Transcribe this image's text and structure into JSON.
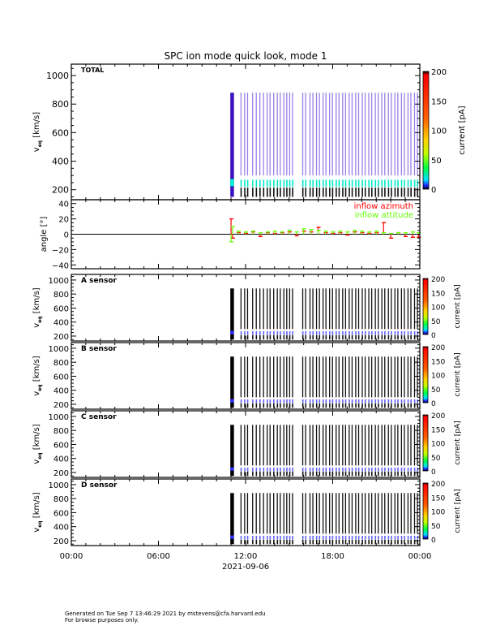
{
  "chart_data": {
    "type": "heatmap",
    "title": "SPC ion mode quick look, mode 1",
    "xlabel": "2021-09-06",
    "x_range_hours": [
      0,
      24
    ],
    "x_ticks": [
      {
        "h": 0,
        "label": "00:00"
      },
      {
        "h": 6,
        "label": "06:00"
      },
      {
        "h": 12,
        "label": "12:00"
      },
      {
        "h": 18,
        "label": "18:00"
      },
      {
        "h": 24,
        "label": "00:00"
      }
    ],
    "colors": {
      "azimuth": "#ff0000",
      "attitude": "#66ff00",
      "axis": "#000000"
    },
    "velocity_axis": {
      "label_main": "v",
      "label_sub": "eq",
      "label_unit": "[km/s]",
      "range": [
        130,
        1080
      ],
      "ticks": [
        200,
        400,
        600,
        800,
        1000
      ]
    },
    "colorbar": {
      "label": "current [pA]",
      "range": [
        0,
        200
      ],
      "ticks": [
        0,
        50,
        100,
        150,
        200
      ]
    },
    "spectrogram_panels": [
      {
        "name": "TOTAL",
        "style": "total"
      },
      {
        "name": "A sensor",
        "style": "sensor"
      },
      {
        "name": "B sensor",
        "style": "sensor"
      },
      {
        "name": "C sensor",
        "style": "sensor"
      },
      {
        "name": "D sensor",
        "style": "sensor"
      }
    ],
    "data_block_hours": [
      10.95,
      11.2
    ],
    "stripe_hours": [
      11.65,
      11.9,
      12.1,
      12.45,
      12.7,
      12.95,
      13.2,
      13.45,
      13.65,
      13.9,
      14.15,
      14.35,
      14.6,
      14.8,
      15.0,
      15.2,
      15.9,
      16.1,
      16.4,
      16.6,
      16.85,
      17.05,
      17.3,
      17.5,
      17.75,
      17.95,
      18.2,
      18.4,
      18.65,
      18.85,
      19.1,
      19.3,
      19.55,
      19.75,
      20.0,
      20.2,
      20.45,
      20.65,
      20.9,
      21.1,
      21.35,
      21.55,
      21.8,
      22.0,
      22.25,
      22.45,
      22.7,
      22.9,
      23.15,
      23.35,
      23.6,
      23.8
    ],
    "peak_velocity_kms": 250,
    "angle_panel": {
      "ylabel": "angle [°]",
      "range": [
        -45,
        45
      ],
      "ticks": [
        -40,
        -20,
        0,
        20,
        40
      ],
      "legend": [
        "inflow azimuth",
        "inflow attitude"
      ],
      "series": [
        {
          "name": "inflow azimuth",
          "x": [
            11.0,
            11.1,
            11.5,
            12.0,
            12.5,
            13.0,
            13.5,
            14.0,
            14.5,
            15.0,
            15.5,
            16.0,
            16.5,
            17.0,
            17.5,
            18.0,
            18.5,
            19.0,
            19.5,
            20.0,
            20.5,
            21.0,
            21.5,
            22.0,
            22.5,
            23.0,
            23.5,
            23.9
          ],
          "y": [
            20,
            -5,
            2,
            1,
            3,
            -3,
            2,
            1,
            2,
            3,
            -2,
            4,
            3,
            9,
            2,
            1,
            2,
            -1,
            3,
            2,
            1,
            2,
            15,
            -5,
            2,
            -3,
            -4,
            -4
          ]
        },
        {
          "name": "inflow attitude",
          "x": [
            11.0,
            11.1,
            11.5,
            12.0,
            12.5,
            13.0,
            13.5,
            14.0,
            14.5,
            15.0,
            15.5,
            16.0,
            16.5,
            17.0,
            17.5,
            18.0,
            18.5,
            19.0,
            19.5,
            20.0,
            20.5,
            21.0,
            21.5,
            22.0,
            22.5,
            23.0,
            23.5,
            23.9
          ],
          "y": [
            -10,
            10,
            4,
            3,
            4,
            2,
            3,
            4,
            3,
            5,
            3,
            7,
            6,
            5,
            4,
            3,
            4,
            3,
            5,
            4,
            3,
            4,
            2,
            1,
            2,
            2,
            3,
            2
          ]
        }
      ]
    }
  },
  "footer": {
    "line1": "Generated on Tue Sep  7 13:46:29 2021 by mstevens@cfa.harvard.edu",
    "line2": "For browse purposes only."
  }
}
